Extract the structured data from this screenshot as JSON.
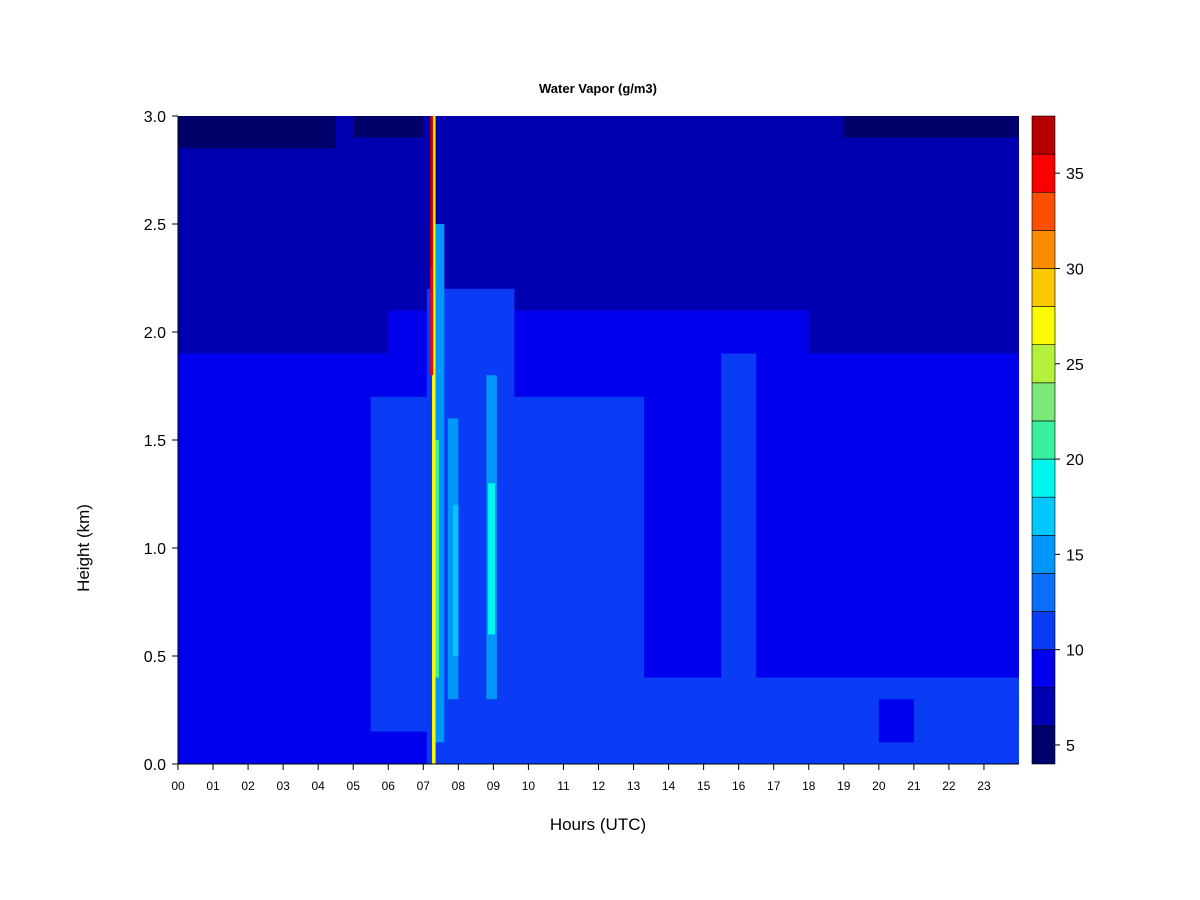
{
  "chart_data": {
    "type": "heatmap",
    "title": "Water Vapor (g/m3)",
    "xlabel": "Hours (UTC)",
    "ylabel": "Height (km)",
    "xlim": [
      0,
      24
    ],
    "ylim": [
      0,
      3.0
    ],
    "x_tick_labels": [
      "00",
      "01",
      "02",
      "03",
      "04",
      "05",
      "06",
      "07",
      "08",
      "09",
      "10",
      "11",
      "12",
      "13",
      "14",
      "15",
      "16",
      "17",
      "18",
      "19",
      "20",
      "21",
      "22",
      "23"
    ],
    "y_tick_labels": [
      "0.0",
      "0.5",
      "1.0",
      "1.5",
      "2.0",
      "2.5",
      "3.0"
    ],
    "y_ticks": [
      0,
      0.5,
      1.0,
      1.5,
      2.0,
      2.5,
      3.0
    ],
    "colorbar": {
      "levels": [
        4,
        6,
        8,
        10,
        12,
        14,
        16,
        18,
        20,
        22,
        24,
        26,
        28,
        30,
        32,
        34,
        36,
        38
      ],
      "tick_labels": [
        "5",
        "10",
        "15",
        "20",
        "25",
        "30",
        "35"
      ],
      "ticks": [
        5,
        10,
        15,
        20,
        25,
        30,
        35
      ],
      "colors": [
        "#00006b",
        "#0000b0",
        "#0000ee",
        "#0a3cf5",
        "#0a6ef8",
        "#0096fa",
        "#00c8fa",
        "#00f5ee",
        "#3af0a0",
        "#7ae87a",
        "#b4f03c",
        "#fafa00",
        "#fac800",
        "#fa8c00",
        "#fa5000",
        "#fa0000",
        "#b40000"
      ]
    },
    "regions": [
      {
        "x": [
          0,
          24
        ],
        "y": [
          0,
          3.0
        ],
        "value": 9
      },
      {
        "x": [
          0,
          24
        ],
        "y": [
          2.1,
          3.0
        ],
        "value": 7
      },
      {
        "x": [
          0,
          6.0
        ],
        "y": [
          1.9,
          2.2
        ],
        "value": 7
      },
      {
        "x": [
          18.0,
          24
        ],
        "y": [
          1.9,
          2.2
        ],
        "value": 7
      },
      {
        "x": [
          0,
          4.5
        ],
        "y": [
          2.85,
          3.0
        ],
        "value": 5
      },
      {
        "x": [
          5.0,
          7.0
        ],
        "y": [
          2.9,
          3.0
        ],
        "value": 5
      },
      {
        "x": [
          19.0,
          24
        ],
        "y": [
          2.9,
          3.0
        ],
        "value": 5
      },
      {
        "x": [
          5.5,
          7.1
        ],
        "y": [
          0.15,
          1.7
        ],
        "value": 10
      },
      {
        "x": [
          7.1,
          9.6
        ],
        "y": [
          0,
          2.2
        ],
        "value": 11
      },
      {
        "x": [
          9.6,
          13.3
        ],
        "y": [
          0,
          1.7
        ],
        "value": 11
      },
      {
        "x": [
          13.3,
          24
        ],
        "y": [
          0,
          0.4
        ],
        "value": 11
      },
      {
        "x": [
          15.5,
          16.5
        ],
        "y": [
          0.2,
          1.9
        ],
        "value": 11
      },
      {
        "x": [
          20.0,
          21.0
        ],
        "y": [
          0.1,
          0.3
        ],
        "value": 9
      },
      {
        "x": [
          7.35,
          7.6
        ],
        "y": [
          0.1,
          2.5
        ],
        "value": 14
      },
      {
        "x": [
          7.7,
          8.0
        ],
        "y": [
          0.3,
          1.6
        ],
        "value": 14
      },
      {
        "x": [
          8.8,
          9.1
        ],
        "y": [
          0.3,
          1.8
        ],
        "value": 14
      },
      {
        "x": [
          7.85,
          8.0
        ],
        "y": [
          0.5,
          1.2
        ],
        "value": 17
      },
      {
        "x": [
          8.85,
          9.05
        ],
        "y": [
          0.6,
          1.3
        ],
        "value": 19
      },
      {
        "x": [
          7.3,
          7.45
        ],
        "y": [
          0.4,
          1.5
        ],
        "value": 20
      },
      {
        "x": [
          7.25,
          7.35
        ],
        "y": [
          0,
          3.0
        ],
        "value": 27
      },
      {
        "x": [
          7.2,
          7.28
        ],
        "y": [
          1.8,
          3.0
        ],
        "value": 34
      },
      {
        "x": [
          7.2,
          7.25
        ],
        "y": [
          2.3,
          3.0
        ],
        "value": 37
      }
    ]
  }
}
